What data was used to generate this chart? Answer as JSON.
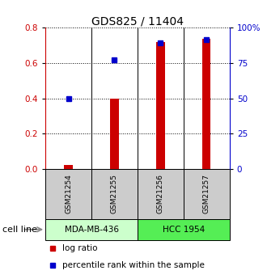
{
  "title": "GDS825 / 11404",
  "samples": [
    "GSM21254",
    "GSM21255",
    "GSM21256",
    "GSM21257"
  ],
  "log_ratio": [
    0.02,
    0.4,
    0.72,
    0.74
  ],
  "percentile_rank": [
    0.4,
    0.62,
    0.715,
    0.735
  ],
  "ylim_left": [
    0,
    0.8
  ],
  "ylim_right": [
    0,
    100
  ],
  "yticks_left": [
    0,
    0.2,
    0.4,
    0.6,
    0.8
  ],
  "yticks_right": [
    0,
    25,
    50,
    75,
    100
  ],
  "ytick_labels_right": [
    "0",
    "25",
    "50",
    "75",
    "100%"
  ],
  "cell_lines": [
    {
      "label": "MDA-MB-436",
      "color": "#ccffcc",
      "start": 0,
      "end": 2
    },
    {
      "label": "HCC 1954",
      "color": "#55ee55",
      "start": 2,
      "end": 4
    }
  ],
  "bar_color": "#cc0000",
  "dot_color": "#0000cc",
  "bar_width": 0.18,
  "axis_color_left": "#cc0000",
  "axis_color_right": "#0000cc",
  "cell_line_label": "cell line",
  "legend_items": [
    {
      "color": "#cc0000",
      "label": "log ratio"
    },
    {
      "color": "#0000cc",
      "label": "percentile rank within the sample"
    }
  ],
  "background_color": "#ffffff",
  "label_area_color": "#cccccc"
}
